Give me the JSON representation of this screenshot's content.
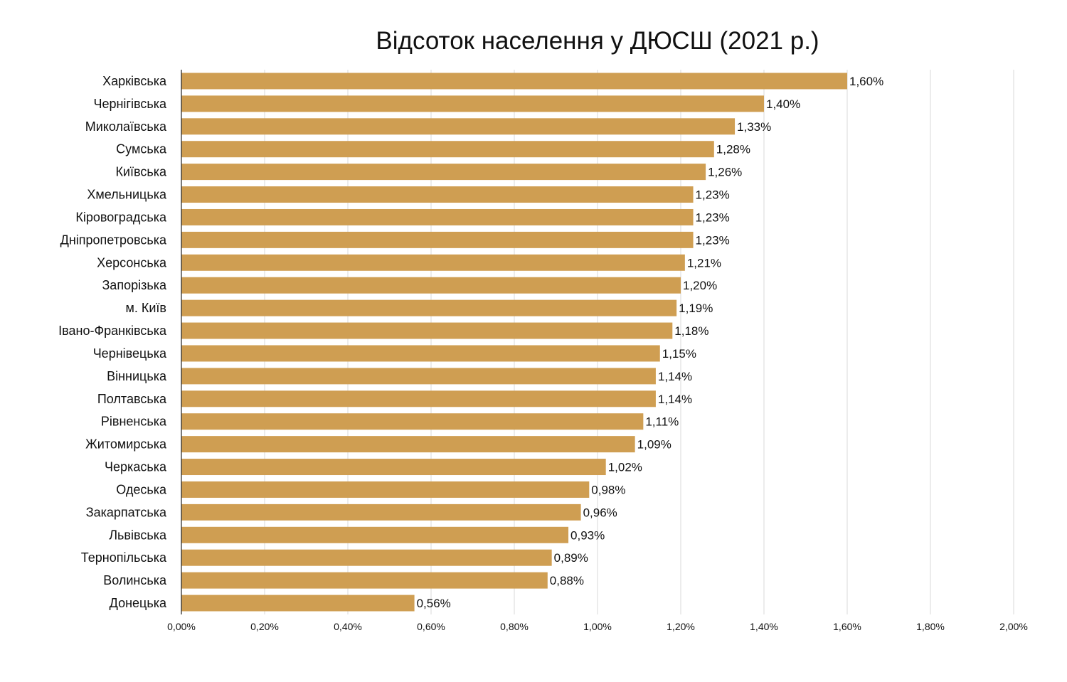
{
  "chart_data": {
    "type": "bar",
    "orientation": "horizontal",
    "title": "Відсоток населення у ДЮСШ (2021 р.)",
    "xlim": [
      0,
      2.0
    ],
    "x_ticks": [
      0,
      0.2,
      0.4,
      0.6,
      0.8,
      1.0,
      1.2,
      1.4,
      1.6,
      1.8,
      2.0
    ],
    "x_tick_labels": [
      "0,00%",
      "0,20%",
      "0,40%",
      "0,60%",
      "0,80%",
      "1,00%",
      "1,20%",
      "1,40%",
      "1,60%",
      "1,80%",
      "2,00%"
    ],
    "grid": "vertical",
    "bar_color": "#cf9e52",
    "categories": [
      "Харківська",
      "Чернігівська",
      "Миколаївська",
      "Сумська",
      "Київська",
      "Хмельницька",
      "Кіровоградська",
      "Дніпропетровська",
      "Херсонська",
      "Запорізька",
      "м. Київ",
      "Івано-Франківська",
      "Чернівецька",
      "Вінницька",
      "Полтавська",
      "Рівненська",
      "Житомирська",
      "Черкаська",
      "Одеська",
      "Закарпатська",
      "Львівська",
      "Тернопільська",
      "Волинська",
      "Донецька"
    ],
    "values": [
      1.6,
      1.4,
      1.33,
      1.28,
      1.26,
      1.23,
      1.23,
      1.23,
      1.21,
      1.2,
      1.19,
      1.18,
      1.15,
      1.14,
      1.14,
      1.11,
      1.09,
      1.02,
      0.98,
      0.96,
      0.93,
      0.89,
      0.88,
      0.56
    ],
    "value_labels": [
      "1,60%",
      "1,40%",
      "1,33%",
      "1,28%",
      "1,26%",
      "1,23%",
      "1,23%",
      "1,23%",
      "1,21%",
      "1,20%",
      "1,19%",
      "1,18%",
      "1,15%",
      "1,14%",
      "1,14%",
      "1,11%",
      "1,09%",
      "1,02%",
      "0,98%",
      "0,96%",
      "0,93%",
      "0,89%",
      "0,88%",
      "0,56%"
    ]
  }
}
